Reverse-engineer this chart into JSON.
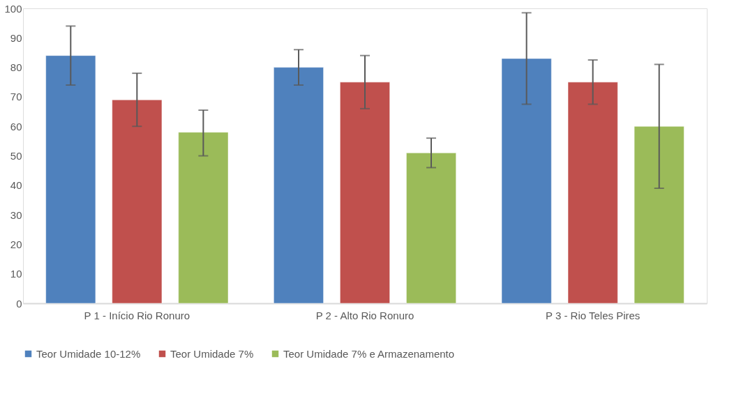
{
  "chart_data": {
    "type": "bar",
    "categories": [
      "P 1 - Início Rio Ronuro",
      "P 2 - Alto Rio Ronuro",
      "P 3 - Rio Teles Pires"
    ],
    "series": [
      {
        "name": "Teor Umidade 10-12%",
        "color": "#4f81bd",
        "values": [
          84,
          80,
          83
        ],
        "errors": [
          [
            74,
            94
          ],
          [
            74,
            86
          ],
          [
            67.5,
            98.5
          ]
        ]
      },
      {
        "name": "Teor Umidade 7%",
        "color": "#c0504d",
        "values": [
          69,
          75,
          75
        ],
        "errors": [
          [
            60,
            78
          ],
          [
            66,
            84
          ],
          [
            67.5,
            82.5
          ]
        ]
      },
      {
        "name": "Teor Umidade 7% e Armazenamento",
        "color": "#9bbb59",
        "values": [
          58,
          51,
          60
        ],
        "errors": [
          [
            50,
            65.5
          ],
          [
            46,
            56
          ],
          [
            39,
            81
          ]
        ]
      }
    ],
    "ylim": [
      0,
      100
    ],
    "yticks": [
      0,
      10,
      20,
      30,
      40,
      50,
      60,
      70,
      80,
      90,
      100
    ],
    "grid": false,
    "legend": "bottom"
  }
}
